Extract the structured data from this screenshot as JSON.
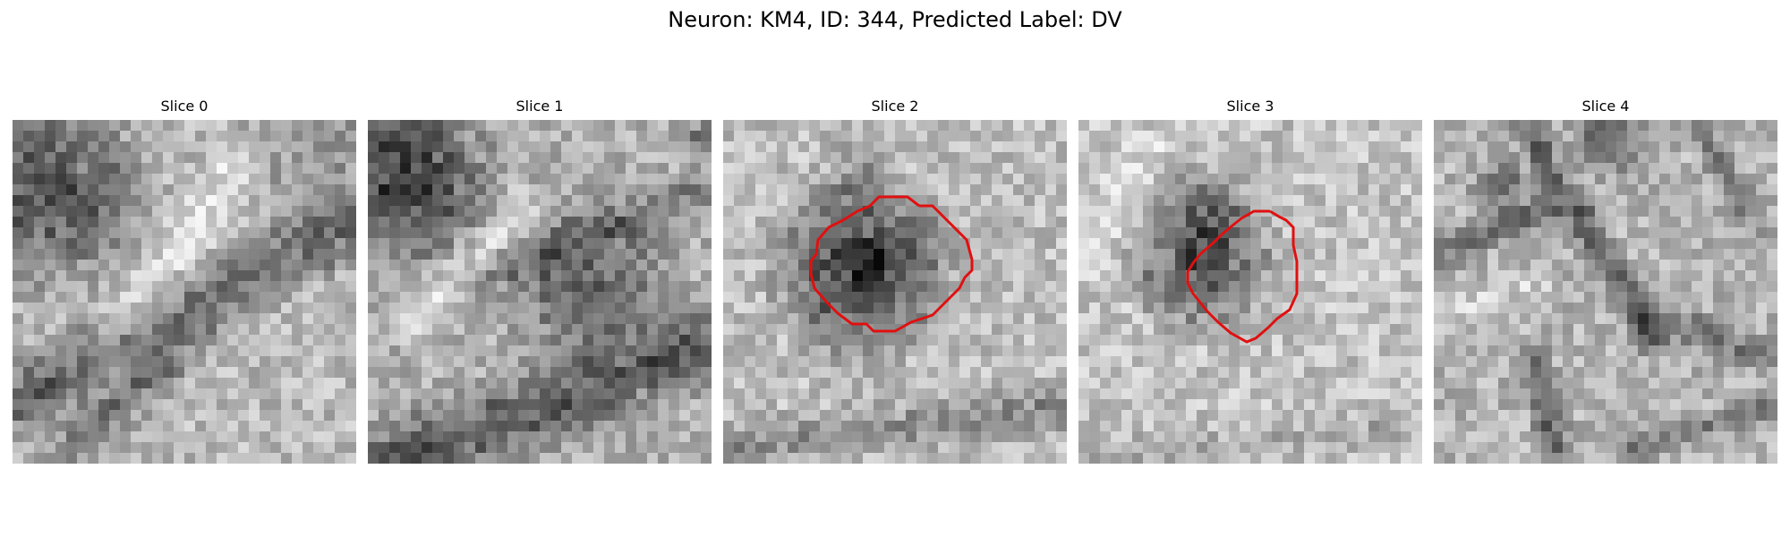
{
  "figure": {
    "title": "Neuron: KM4, ID: 344, Predicted Label: DV"
  },
  "panels": [
    {
      "title": "Slice 0",
      "has_contour": false
    },
    {
      "title": "Slice 1",
      "has_contour": false
    },
    {
      "title": "Slice 2",
      "has_contour": true
    },
    {
      "title": "Slice 3",
      "has_contour": true
    },
    {
      "title": "Slice 4",
      "has_contour": false
    }
  ],
  "colors": {
    "contour": "#e01010",
    "background": "#ffffff"
  }
}
